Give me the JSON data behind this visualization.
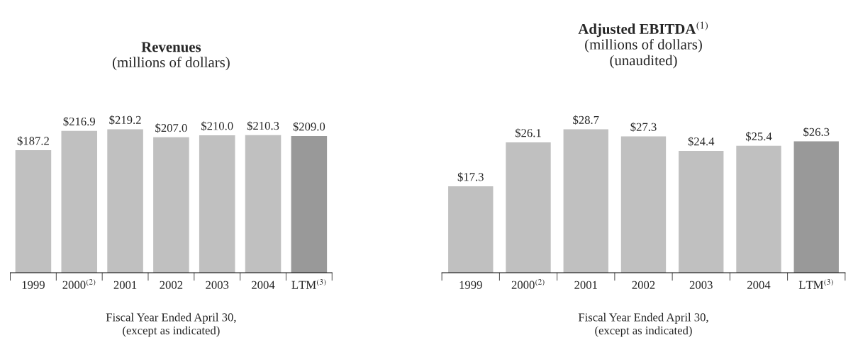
{
  "chart_data": [
    {
      "type": "bar",
      "title": "Revenues",
      "subtitle": "(millions of dollars)",
      "xlabel": "Fiscal Year Ended April 30,\n(except as indicated)",
      "categories": [
        "1999",
        "2000$^{(2)}$",
        "2001",
        "2002",
        "2003",
        "2004",
        "LTM$^{(3)}$"
      ],
      "values": [
        187.2,
        216.9,
        219.2,
        207.0,
        210.0,
        210.3,
        209.0
      ],
      "value_labels": [
        "$187.2",
        "$216.9",
        "$219.2",
        "$207.0",
        "$210.0",
        "$210.3",
        "$209.0"
      ],
      "colors": [
        "#c0c0c0",
        "#c0c0c0",
        "#c0c0c0",
        "#c0c0c0",
        "#c0c0c0",
        "#c0c0c0",
        "#999999"
      ]
    },
    {
      "type": "bar",
      "title": "Adjusted EBITDA$^{(1)}$",
      "subtitle": "(millions of dollars)\n(unaudited)",
      "xlabel": "Fiscal Year Ended April 30,\n(except as indicated)",
      "categories": [
        "1999",
        "2000$^{(2)}$",
        "2001",
        "2002",
        "2003",
        "2004",
        "LTM$^{(3)}$"
      ],
      "values": [
        17.3,
        26.1,
        28.7,
        27.3,
        24.4,
        25.4,
        26.3
      ],
      "value_labels": [
        "$17.3",
        "$26.1",
        "$28.7",
        "$27.3",
        "$24.4",
        "$25.4",
        "$26.3"
      ],
      "colors": [
        "#c0c0c0",
        "#c0c0c0",
        "#c0c0c0",
        "#c0c0c0",
        "#c0c0c0",
        "#c0c0c0",
        "#999999"
      ]
    }
  ]
}
